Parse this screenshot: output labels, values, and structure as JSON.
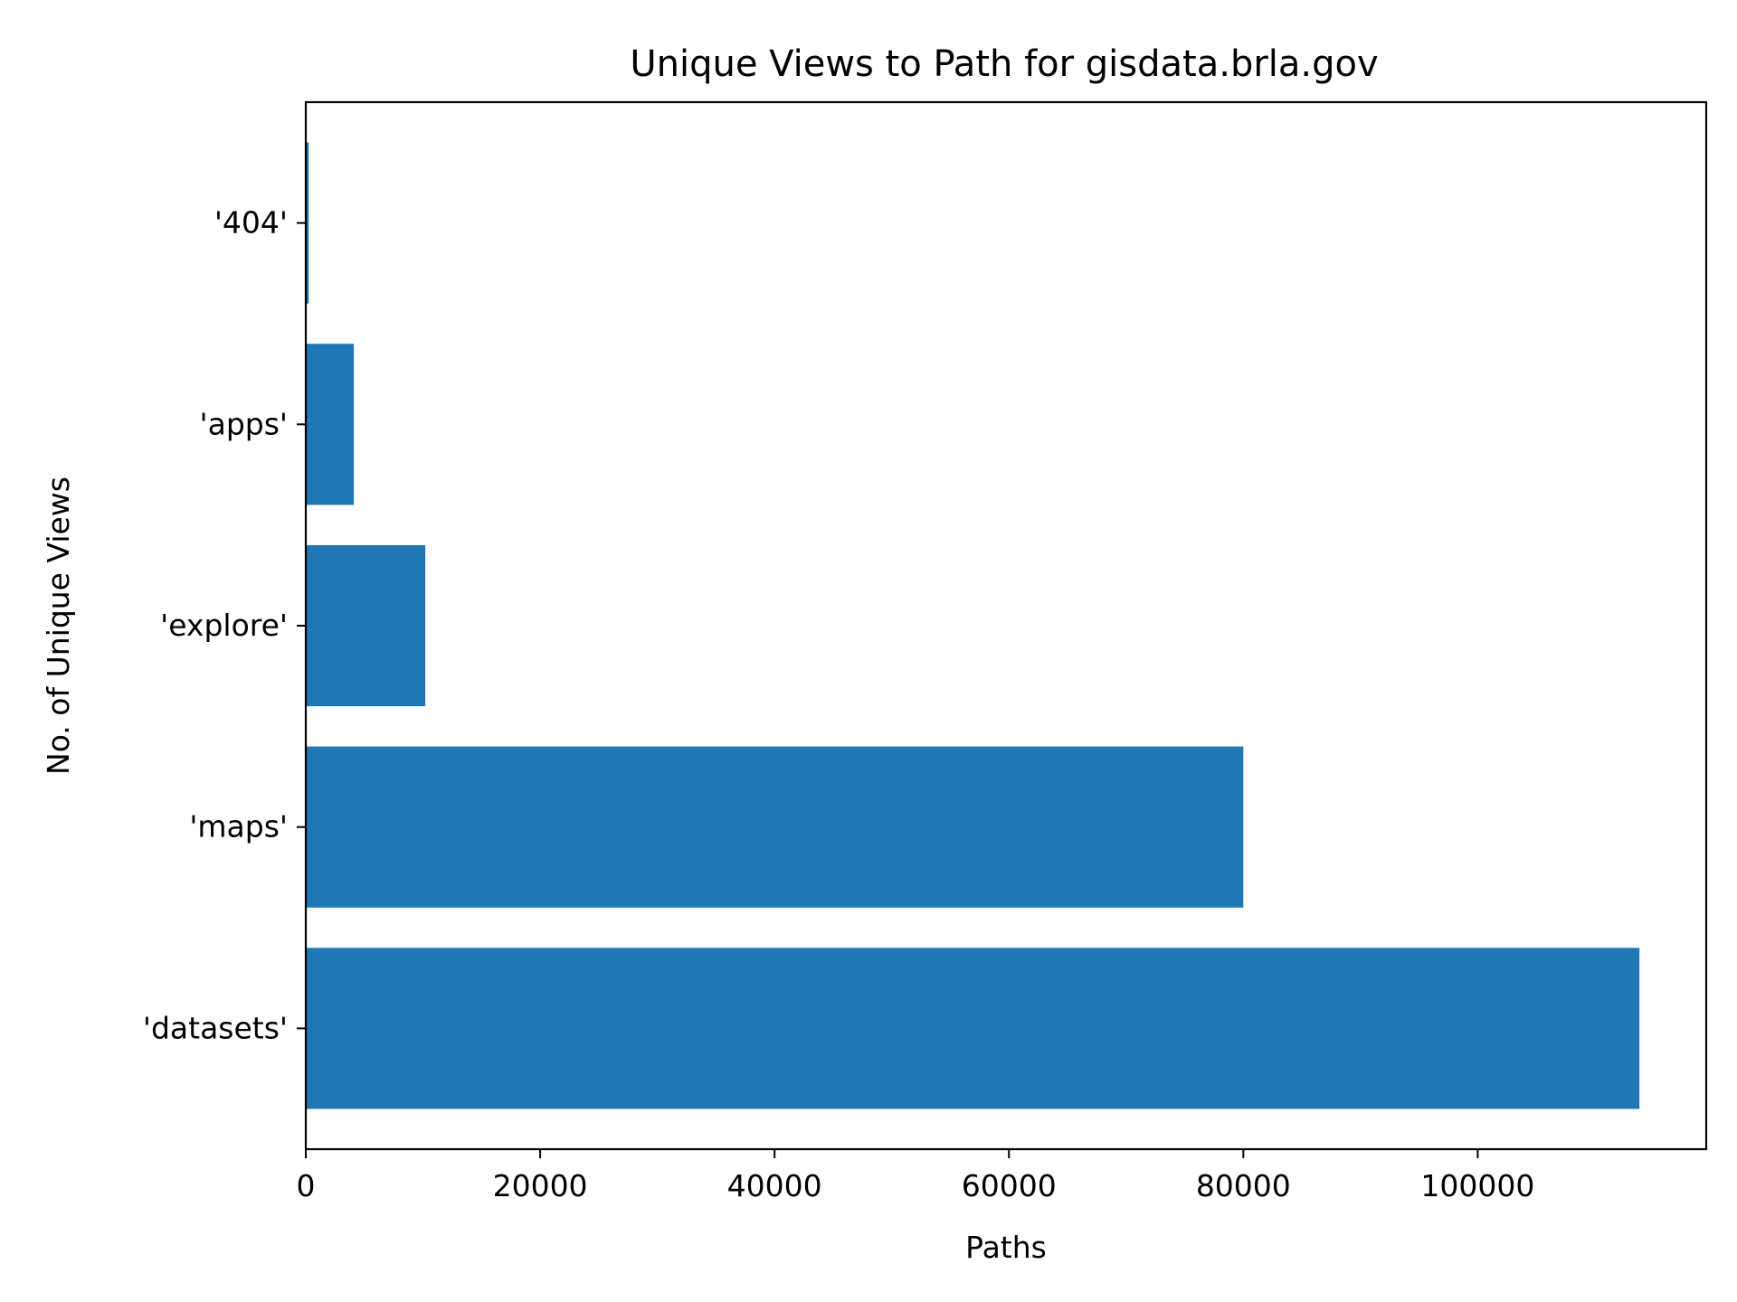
{
  "chart_data": {
    "type": "bar",
    "orientation": "horizontal",
    "title": "Unique Views to Path for gisdata.brla.gov",
    "xlabel": "Paths",
    "ylabel": "No. of Unique Views",
    "categories": [
      "'datasets'",
      "'maps'",
      "'explore'",
      "'apps'",
      "'404'"
    ],
    "values": [
      113800,
      80000,
      10200,
      4100,
      250
    ],
    "xlim": [
      0,
      119500
    ],
    "xticks": [
      0,
      20000,
      40000,
      60000,
      80000,
      100000
    ],
    "grid": false,
    "legend": "none",
    "bar_color": "#1f77b4"
  }
}
